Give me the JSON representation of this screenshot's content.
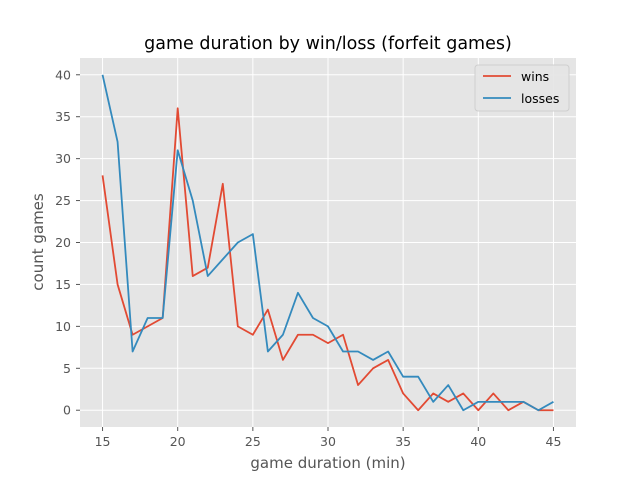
{
  "chart_data": {
    "type": "line",
    "title": "game duration by win/loss (forfeit games)",
    "xlabel": "game duration (min)",
    "ylabel": "count games",
    "x": [
      15,
      16,
      17,
      18,
      19,
      20,
      21,
      22,
      23,
      24,
      25,
      26,
      27,
      28,
      29,
      30,
      31,
      32,
      33,
      34,
      35,
      36,
      37,
      38,
      39,
      40,
      41,
      42,
      43,
      44,
      45
    ],
    "series": [
      {
        "name": "wins",
        "color": "#E24A33",
        "values": [
          28,
          15,
          9,
          10,
          11,
          36,
          16,
          17,
          27,
          10,
          9,
          12,
          6,
          9,
          9,
          8,
          9,
          3,
          5,
          6,
          2,
          0,
          2,
          1,
          2,
          0,
          2,
          0,
          1,
          0,
          0
        ]
      },
      {
        "name": "losses",
        "color": "#348ABD",
        "values": [
          40,
          32,
          7,
          11,
          11,
          31,
          25,
          16,
          18,
          20,
          21,
          7,
          9,
          14,
          11,
          10,
          7,
          7,
          6,
          7,
          4,
          4,
          1,
          3,
          0,
          1,
          1,
          1,
          1,
          0,
          1
        ]
      }
    ],
    "xlim": [
      13.5,
      46.5
    ],
    "ylim": [
      -2,
      42
    ],
    "xticks": [
      15,
      20,
      25,
      30,
      35,
      40,
      45
    ],
    "yticks": [
      0,
      5,
      10,
      15,
      20,
      25,
      30,
      35,
      40
    ],
    "grid": true,
    "legend": "top-right",
    "background": "#E5E5E5",
    "grid_color": "#ffffff"
  }
}
